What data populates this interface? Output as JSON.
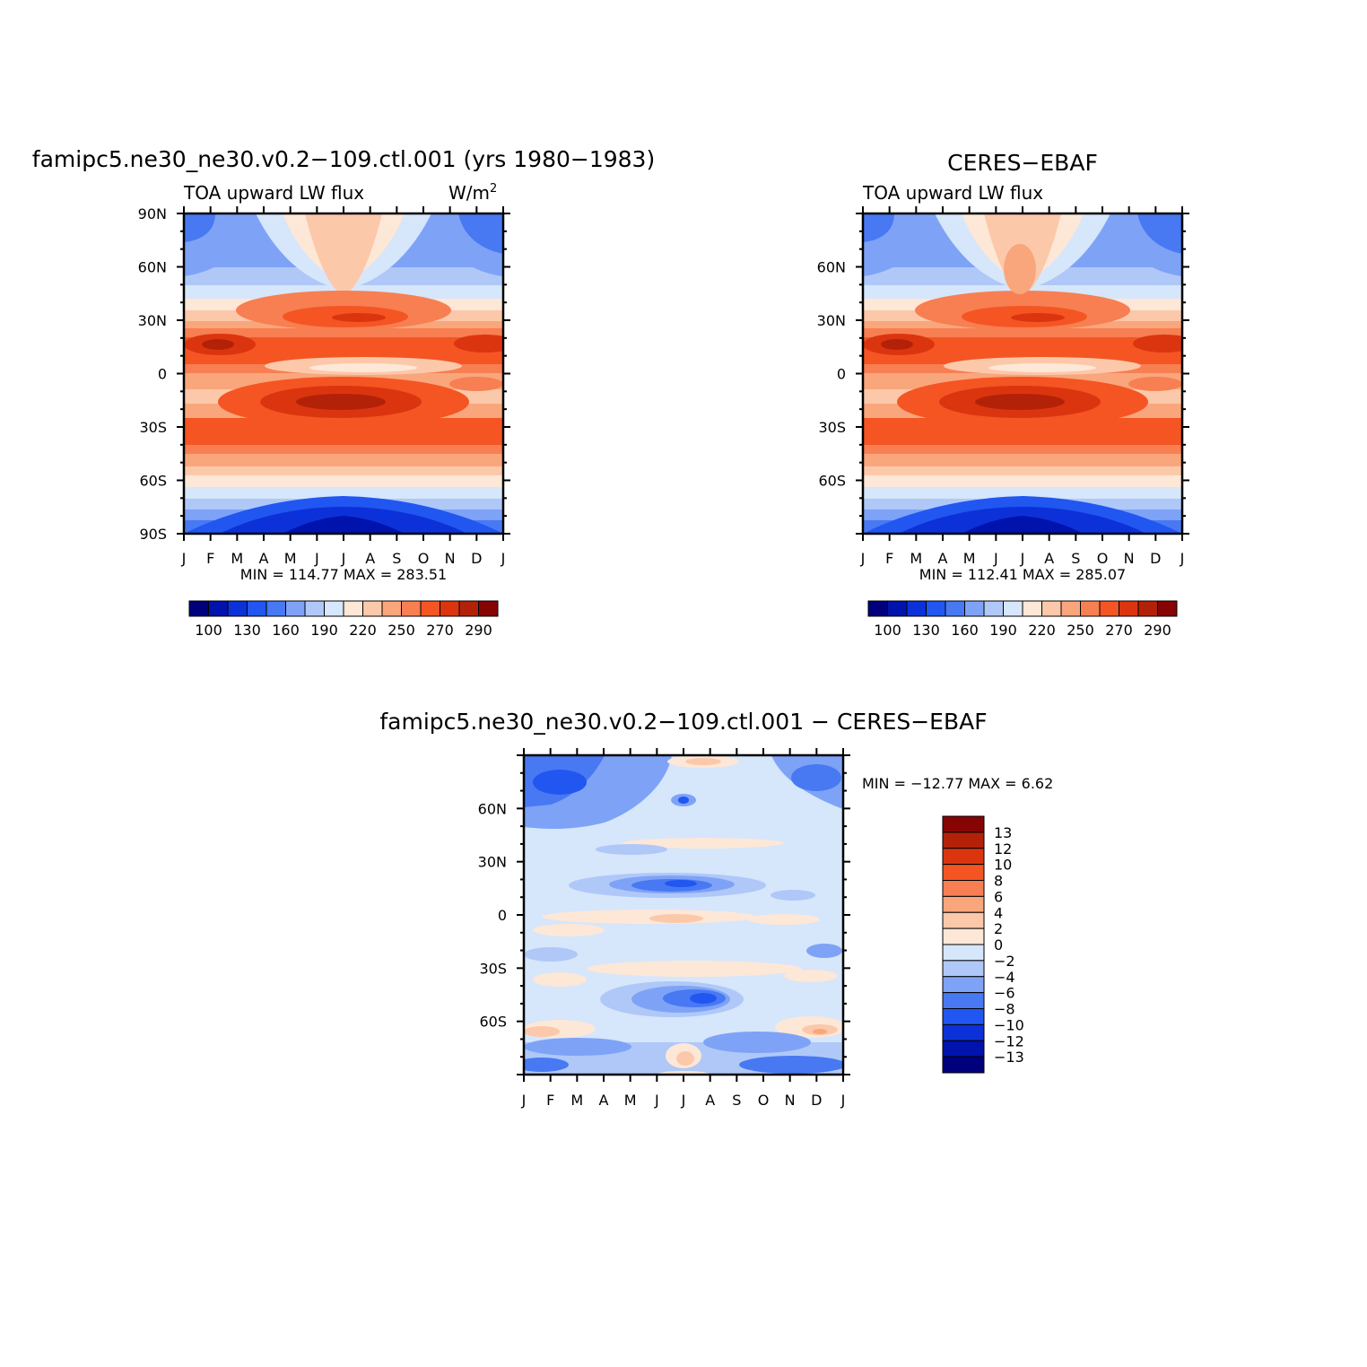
{
  "colors": {
    "full_scale": [
      "#00007d",
      "#0013ad",
      "#0c31d8",
      "#2156f1",
      "#4879f3",
      "#7ea3f6",
      "#afc8f8",
      "#d6e6fb",
      "#fde7d7",
      "#fcc8aa",
      "#f9a67c",
      "#f77f52",
      "#f55523",
      "#db3510",
      "#b32208",
      "#870404"
    ],
    "diff_scale": [
      "#00007d",
      "#0013ad",
      "#0c31d8",
      "#2156f1",
      "#4879f3",
      "#7ea3f6",
      "#afc8f8",
      "#d6e6fb",
      "#fde7d7",
      "#fcc8aa",
      "#f9a67c",
      "#f77f52",
      "#f55523",
      "#db3510",
      "#b32208",
      "#870404"
    ]
  },
  "panels": {
    "model": {
      "title": "famipc5.ne30_ne30.v0.2−109.ctl.001 (yrs 1980−1983)",
      "left_label": "TOA upward LW flux",
      "units_base": "W/m",
      "units_sup": "2",
      "stats": "MIN = 114.77 MAX = 283.51",
      "y_ticks": [
        "90N",
        "60N",
        "30N",
        "0",
        "30S",
        "60S",
        "90S"
      ],
      "x_ticks": [
        "J",
        "F",
        "M",
        "A",
        "M",
        "J",
        "J",
        "A",
        "S",
        "O",
        "N",
        "D",
        "J"
      ],
      "colorbar_labels": [
        "100",
        "130",
        "160",
        "190",
        "220",
        "250",
        "270",
        "290"
      ]
    },
    "obs": {
      "title": "CERES−EBAF",
      "left_label": "TOA upward LW flux",
      "stats": "MIN = 112.41 MAX = 285.07",
      "y_ticks": [
        "60N",
        "30N",
        "0",
        "30S",
        "60S"
      ],
      "x_ticks": [
        "J",
        "F",
        "M",
        "A",
        "M",
        "J",
        "J",
        "A",
        "S",
        "O",
        "N",
        "D",
        "J"
      ],
      "colorbar_labels": [
        "100",
        "130",
        "160",
        "190",
        "220",
        "250",
        "270",
        "290"
      ]
    },
    "diff": {
      "title": "famipc5.ne30_ne30.v0.2−109.ctl.001 − CERES−EBAF",
      "stats": "MIN = −12.77 MAX =    6.62",
      "y_ticks": [
        "60N",
        "30N",
        "0",
        "30S",
        "60S"
      ],
      "x_ticks": [
        "J",
        "F",
        "M",
        "A",
        "M",
        "J",
        "J",
        "A",
        "S",
        "O",
        "N",
        "D",
        "J"
      ],
      "colorbar_labels": [
        "13",
        "12",
        "10",
        "8",
        "6",
        "4",
        "2",
        "0",
        "−2",
        "−4",
        "−6",
        "−8",
        "−10",
        "−12",
        "−13"
      ]
    }
  },
  "chart_data": [
    {
      "type": "heatmap",
      "title": "famipc5.ne30_ne30.v0.2−109.ctl.001 (yrs 1980−1983)",
      "variable": "TOA upward LW flux",
      "units": "W/m2",
      "x": [
        "J",
        "F",
        "M",
        "A",
        "M",
        "J",
        "J",
        "A",
        "S",
        "O",
        "N",
        "D",
        "J"
      ],
      "y": [
        "90N",
        "60N",
        "30N",
        "0",
        "30S",
        "60S",
        "90S"
      ],
      "min": 114.77,
      "max": 283.51,
      "contour_levels": [
        100,
        110,
        120,
        130,
        140,
        150,
        160,
        170,
        180,
        190,
        200,
        210,
        220,
        230,
        240,
        250,
        260,
        270,
        280,
        290
      ],
      "zonal_mean_profile": {
        "lat": [
          90,
          75,
          60,
          45,
          30,
          15,
          0,
          -15,
          -30,
          -45,
          -60,
          -75,
          -90
        ],
        "value": [
          170,
          185,
          205,
          230,
          255,
          270,
          238,
          262,
          258,
          228,
          200,
          160,
          125
        ]
      }
    },
    {
      "type": "heatmap",
      "title": "CERES−EBAF",
      "variable": "TOA upward LW flux",
      "units": "W/m2",
      "x": [
        "J",
        "F",
        "M",
        "A",
        "M",
        "J",
        "J",
        "A",
        "S",
        "O",
        "N",
        "D",
        "J"
      ],
      "y": [
        "60N",
        "30N",
        "0",
        "30S",
        "60S"
      ],
      "min": 112.41,
      "max": 285.07,
      "contour_levels": [
        100,
        110,
        120,
        130,
        140,
        150,
        160,
        170,
        180,
        190,
        200,
        210,
        220,
        230,
        240,
        250,
        260,
        270,
        280,
        290
      ]
    },
    {
      "type": "heatmap",
      "title": "famipc5.ne30_ne30.v0.2−109.ctl.001 − CERES−EBAF",
      "x": [
        "J",
        "F",
        "M",
        "A",
        "M",
        "J",
        "J",
        "A",
        "S",
        "O",
        "N",
        "D",
        "J"
      ],
      "y": [
        "60N",
        "30N",
        "0",
        "30S",
        "60S"
      ],
      "min": -12.77,
      "max": 6.62,
      "contour_levels": [
        -13,
        -12,
        -10,
        -8,
        -6,
        -4,
        -2,
        0,
        2,
        4,
        6,
        8,
        10,
        12,
        13
      ]
    }
  ]
}
